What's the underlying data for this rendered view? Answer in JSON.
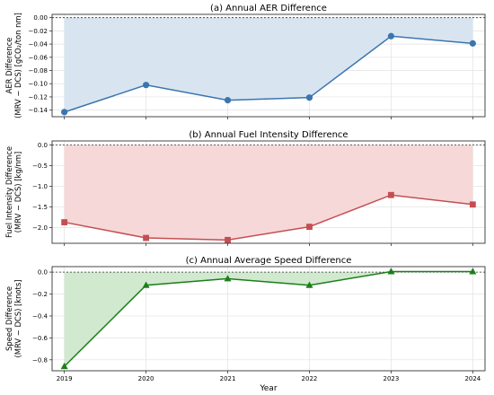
{
  "figure": {
    "xlabel": "Year"
  },
  "chart_data": [
    {
      "type": "area",
      "title": "(a) Annual AER Difference",
      "ylabel_line1": "AER Difference",
      "ylabel_line2": "(MRV − DCS) [gCO₂/ton nm]",
      "x": [
        2019,
        2020,
        2021,
        2022,
        2023,
        2024
      ],
      "values": [
        -0.143,
        -0.102,
        -0.125,
        -0.121,
        -0.028,
        -0.039
      ],
      "ylim": [
        -0.15,
        0.005
      ],
      "yticks": [
        0.0,
        -0.02,
        -0.04,
        -0.06,
        -0.08,
        -0.1,
        -0.12,
        -0.14
      ],
      "ytick_labels": [
        "0.00",
        "−0.02",
        "−0.04",
        "−0.06",
        "−0.08",
        "−0.10",
        "−0.12",
        "−0.14"
      ],
      "color": "#3b75af",
      "fill": "#d6e4f0",
      "marker": "circle",
      "zero_line": true,
      "grid": true
    },
    {
      "type": "area",
      "title": "(b) Annual Fuel Intensity Difference",
      "ylabel_line1": "Fuel Intensity Difference",
      "ylabel_line2": "(MRV − DCS) [kg/nm]",
      "x": [
        2019,
        2020,
        2021,
        2022,
        2023,
        2024
      ],
      "values": [
        -1.87,
        -2.25,
        -2.3,
        -1.98,
        -1.21,
        -1.44
      ],
      "ylim": [
        -2.38,
        0.1
      ],
      "yticks": [
        0.0,
        -0.5,
        -1.0,
        -1.5,
        -2.0
      ],
      "ytick_labels": [
        "0.0",
        "−0.5",
        "−1.0",
        "−1.5",
        "−2.0"
      ],
      "color": "#c44e52",
      "fill": "#f6d6d6",
      "marker": "square",
      "zero_line": true,
      "grid": true
    },
    {
      "type": "area",
      "title": "(c) Annual Average Speed Difference",
      "ylabel_line1": "Speed Difference",
      "ylabel_line2": "(MRV − DCS) [knots]",
      "x": [
        2019,
        2020,
        2021,
        2022,
        2023,
        2024
      ],
      "values": [
        -0.86,
        -0.12,
        -0.06,
        -0.12,
        0.005,
        0.005
      ],
      "ylim": [
        -0.9,
        0.05
      ],
      "yticks": [
        0.0,
        -0.2,
        -0.4,
        -0.6,
        -0.8
      ],
      "ytick_labels": [
        "0.0",
        "−0.2",
        "−0.4",
        "−0.6",
        "−0.8"
      ],
      "color": "#1a7f1a",
      "fill": "#cfe8cc",
      "marker": "triangle",
      "zero_line": true,
      "grid": true
    }
  ]
}
